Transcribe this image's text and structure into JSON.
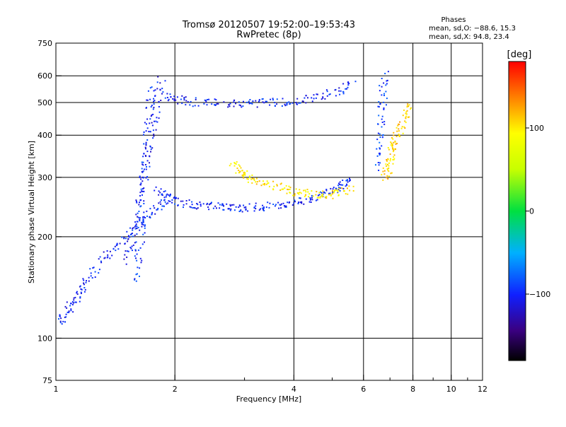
{
  "header": {
    "title_line1": "Tromsø 20120507 19:52:00–19:53:43",
    "title_line2": "RwPretec (8p)"
  },
  "phases_box": {
    "title": "Phases",
    "line_o": "mean, sd,O: −88.6, 15.3",
    "line_x": "mean, sd,X: 94.8, 23.4"
  },
  "colorbar": {
    "label": "[deg]",
    "min": -180,
    "max": 180,
    "ticks": [
      {
        "value": 100,
        "label": "100"
      },
      {
        "value": 0,
        "label": "0"
      },
      {
        "value": -100,
        "label": "−100"
      }
    ]
  },
  "chart_data": {
    "type": "scatter",
    "title": "Tromsø 20120507 19:52:00–19:53:43",
    "subtitle": "RwPretec (8p)",
    "xlabel": "Frequency [MHz]",
    "ylabel": "Stationary phase Virtual Height [km]",
    "x_scale": "log",
    "y_scale": "log",
    "xlim": [
      1,
      12
    ],
    "ylim": [
      75,
      750
    ],
    "grid": true,
    "color_encodes": "phase [deg]",
    "x_ticks": [
      {
        "value": 1,
        "label": "1"
      },
      {
        "value": 2,
        "label": "2"
      },
      {
        "value": 4,
        "label": "4"
      },
      {
        "value": 6,
        "label": "6"
      },
      {
        "value": 8,
        "label": "8"
      },
      {
        "value": 10,
        "label": "10"
      },
      {
        "value": 12,
        "label": "12"
      }
    ],
    "x_minor_ticks": [
      3,
      5,
      7,
      9,
      11
    ],
    "x_grid": [
      2,
      4,
      6,
      8,
      10
    ],
    "y_ticks": [
      {
        "value": 75,
        "label": "75"
      },
      {
        "value": 100,
        "label": "100"
      },
      {
        "value": 200,
        "label": "200"
      },
      {
        "value": 300,
        "label": "300"
      },
      {
        "value": 400,
        "label": "400"
      },
      {
        "value": 500,
        "label": "500"
      },
      {
        "value": 600,
        "label": "600"
      },
      {
        "value": 750,
        "label": "750"
      }
    ],
    "y_grid": [
      100,
      200,
      300,
      400,
      500,
      600
    ],
    "traces": [
      {
        "x": [
          1.02,
          1.05,
          1.1,
          1.15,
          1.2,
          1.3,
          1.4,
          1.5,
          1.6,
          1.7,
          1.8,
          1.9
        ],
        "y": [
          112,
          118,
          128,
          138,
          150,
          168,
          185,
          200,
          215,
          232,
          248,
          255
        ],
        "phase": -100
      },
      {
        "x": [
          1.5,
          1.55,
          1.6,
          1.65,
          1.7,
          1.75,
          1.8,
          1.85
        ],
        "y": [
          170,
          200,
          240,
          290,
          350,
          420,
          500,
          600
        ],
        "phase": -105
      },
      {
        "x": [
          1.6,
          1.62,
          1.64,
          1.66,
          1.68,
          1.7,
          1.72,
          1.74
        ],
        "y": [
          150,
          180,
          220,
          270,
          330,
          400,
          480,
          560
        ],
        "phase": -95
      },
      {
        "x": [
          1.8,
          1.9,
          2.0,
          2.2,
          2.4,
          2.6,
          2.8,
          3.0,
          3.3,
          3.6,
          3.9,
          4.3,
          4.7,
          5.0,
          5.3,
          5.6
        ],
        "y": [
          280,
          262,
          255,
          250,
          247,
          246,
          245,
          245,
          246,
          248,
          252,
          258,
          266,
          275,
          285,
          295
        ],
        "phase": -100
      },
      {
        "x": [
          1.9,
          2.0,
          2.2,
          2.5,
          2.8,
          3.1,
          3.4,
          3.8,
          4.2,
          4.7,
          5.2,
          5.6
        ],
        "y": [
          530,
          515,
          505,
          500,
          500,
          500,
          502,
          505,
          512,
          525,
          545,
          575
        ],
        "phase": -100
      },
      {
        "x": [
          2.8,
          2.9,
          3.0,
          3.2,
          3.5,
          3.8,
          4.1,
          4.4,
          4.8,
          5.2,
          5.6
        ],
        "y": [
          330,
          315,
          305,
          295,
          285,
          278,
          272,
          268,
          266,
          270,
          280
        ],
        "phase": 100
      },
      {
        "x": [
          6.55,
          6.6,
          6.65,
          6.7,
          6.75
        ],
        "y": [
          320,
          380,
          450,
          530,
          620
        ],
        "phase": -90
      },
      {
        "x": [
          6.8,
          6.9,
          7.0,
          7.1,
          7.2,
          7.4,
          7.6,
          7.8
        ],
        "y": [
          300,
          320,
          345,
          370,
          390,
          420,
          460,
          500
        ],
        "phase": 110
      }
    ]
  }
}
